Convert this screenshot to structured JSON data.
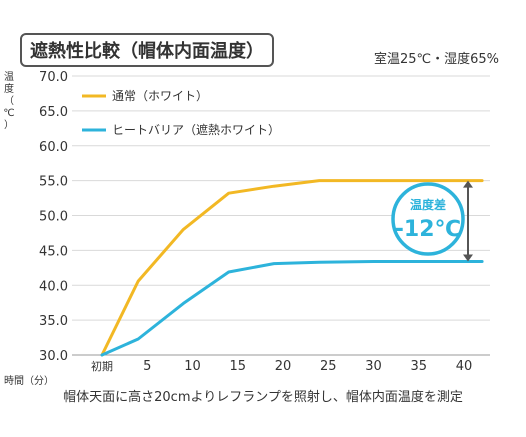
{
  "title": "遮熱性比較（帽体内面温度）",
  "condition": "室温25℃・湿度65%",
  "note": "帽体天面に高さ20cmよりレフランプを照射し、帽体内面温度を測定",
  "colors": {
    "normal": "#F2B824",
    "heatbarrier": "#2DB3DB",
    "grid": "#D9D9D9",
    "arrow": "#555555"
  },
  "chart_data": {
    "type": "line",
    "ylabel": "温度（℃）",
    "xlabel": "時間（分）",
    "x_ticks": [
      "初期",
      "5",
      "10",
      "15",
      "20",
      "25",
      "30",
      "35",
      "40"
    ],
    "y_ticks": [
      "30.0",
      "35.0",
      "40.0",
      "45.0",
      "50.0",
      "55.0",
      "60.0",
      "65.0",
      "70.0"
    ],
    "xlim": [
      0,
      42
    ],
    "ylim": [
      30,
      70
    ],
    "grid": true,
    "legend_position": "top-left",
    "series": [
      {
        "name": "通常（ホワイト）",
        "color_key": "normal",
        "x": [
          0,
          4,
          9,
          14,
          19,
          24,
          30,
          35,
          40,
          42
        ],
        "y": [
          30.0,
          40.6,
          48.0,
          53.2,
          54.2,
          55.0,
          55.0,
          55.0,
          55.0,
          55.0
        ]
      },
      {
        "name": "ヒートバリア（遮熱ホワイト）",
        "color_key": "heatbarrier",
        "x": [
          0,
          4,
          9,
          14,
          19,
          24,
          30,
          35,
          40,
          42
        ],
        "y": [
          30.0,
          32.3,
          37.4,
          41.9,
          43.1,
          43.3,
          43.4,
          43.4,
          43.4,
          43.4
        ]
      }
    ],
    "annotation": {
      "label": "温度差",
      "value": "-12℃",
      "x": 40,
      "from": 55.0,
      "to": 43.4
    }
  }
}
